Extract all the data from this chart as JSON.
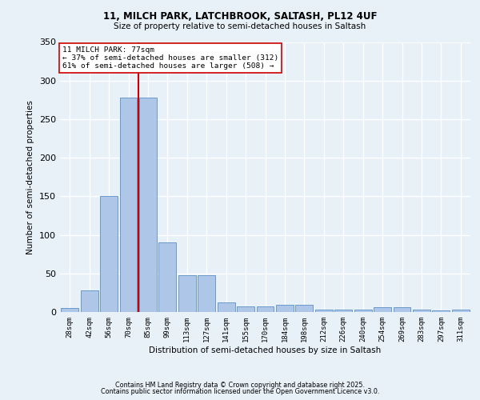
{
  "title1": "11, MILCH PARK, LATCHBROOK, SALTASH, PL12 4UF",
  "title2": "Size of property relative to semi-detached houses in Saltash",
  "xlabel": "Distribution of semi-detached houses by size in Saltash",
  "ylabel": "Number of semi-detached properties",
  "bar_labels": [
    "28sqm",
    "42sqm",
    "56sqm",
    "70sqm",
    "85sqm",
    "99sqm",
    "113sqm",
    "127sqm",
    "141sqm",
    "155sqm",
    "170sqm",
    "184sqm",
    "198sqm",
    "212sqm",
    "226sqm",
    "240sqm",
    "254sqm",
    "269sqm",
    "283sqm",
    "297sqm",
    "311sqm"
  ],
  "bar_values": [
    5,
    28,
    150,
    278,
    278,
    90,
    48,
    48,
    12,
    7,
    7,
    9,
    9,
    3,
    3,
    3,
    6,
    6,
    3,
    2,
    3
  ],
  "bar_color": "#aec6e8",
  "bar_edge_color": "#5b8fc5",
  "property_label": "11 MILCH PARK: 77sqm",
  "annotation_line1": "← 37% of semi-detached houses are smaller (312)",
  "annotation_line2": "61% of semi-detached houses are larger (508) →",
  "vline_color": "#cc0000",
  "vline_x_index": 3.5,
  "ylim": [
    0,
    350
  ],
  "yticks": [
    0,
    50,
    100,
    150,
    200,
    250,
    300,
    350
  ],
  "background_color": "#e8f0f8",
  "plot_bg_color": "#e8f0f8",
  "grid_color": "#ffffff",
  "footer1": "Contains HM Land Registry data © Crown copyright and database right 2025.",
  "footer2": "Contains public sector information licensed under the Open Government Licence v3.0."
}
